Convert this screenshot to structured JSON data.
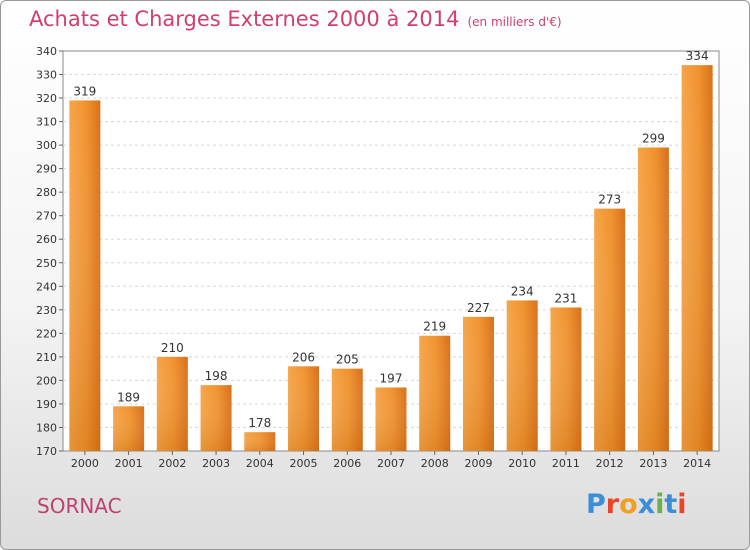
{
  "header": {
    "title": "Achats et Charges Externes 2000 à 2014",
    "unit": "(en milliers d'€)"
  },
  "footer": {
    "place": "SORNAC",
    "logo_letters": [
      "P",
      "r",
      "o",
      "x",
      "i",
      "t",
      "i"
    ],
    "logo_colors": [
      "#3a8fd8",
      "#e8442a",
      "#f0a020",
      "#3a8fd8",
      "#6ab04c",
      "#3a8fd8",
      "#e8442a"
    ]
  },
  "chart_data": {
    "type": "bar",
    "title": "Achats et Charges Externes 2000 à 2014",
    "subtitle": "(en milliers d'€)",
    "xlabel": "",
    "ylabel": "",
    "categories": [
      "2000",
      "2001",
      "2002",
      "2003",
      "2004",
      "2005",
      "2006",
      "2007",
      "2008",
      "2009",
      "2010",
      "2011",
      "2012",
      "2013",
      "2014"
    ],
    "values": [
      319,
      189,
      210,
      198,
      178,
      206,
      205,
      197,
      219,
      227,
      234,
      231,
      273,
      299,
      334
    ],
    "ylim": [
      170,
      340
    ],
    "yticks": [
      170,
      180,
      190,
      200,
      210,
      220,
      230,
      240,
      250,
      260,
      270,
      280,
      290,
      300,
      310,
      320,
      330,
      340
    ],
    "grid": true,
    "bar_color": "#f0922e",
    "bar_color_dark": "#d86e10"
  }
}
